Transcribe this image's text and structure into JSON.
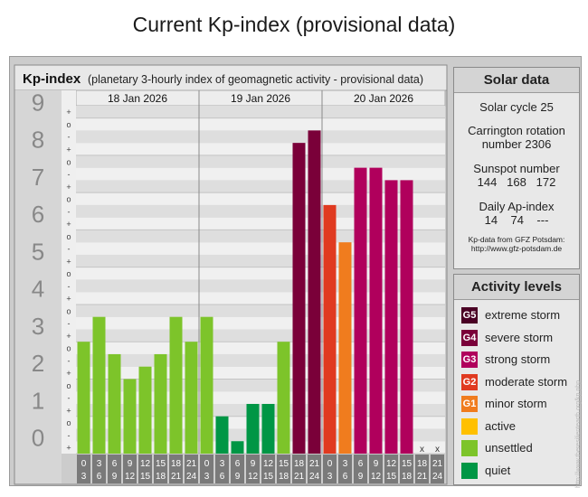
{
  "page_title": "Current Kp-index (provisional data)",
  "chart_header": {
    "title": "Kp-index",
    "subtitle": "(planetary 3-hourly index of geomagnetic activity - provisional data)"
  },
  "chart_data": {
    "type": "bar",
    "title": "Kp-index",
    "ylim": [
      0,
      9.33
    ],
    "y_ticks": [
      "0",
      "1",
      "2",
      "3",
      "4",
      "5",
      "6",
      "7",
      "8",
      "9"
    ],
    "minor_marks": [
      "+",
      "-",
      "o"
    ],
    "days": [
      "18 Jan 2026",
      "19 Jan 2026",
      "20 Jan 2026"
    ],
    "interval_labels": [
      [
        "0",
        "3"
      ],
      [
        "3",
        "6"
      ],
      [
        "6",
        "9"
      ],
      [
        "9",
        "12"
      ],
      [
        "12",
        "15"
      ],
      [
        "15",
        "18"
      ],
      [
        "18",
        "21"
      ],
      [
        "21",
        "24"
      ]
    ],
    "values": [
      3,
      3.667,
      2.667,
      2,
      2.333,
      2.667,
      3.667,
      3,
      3.667,
      1,
      0.333,
      1.333,
      1.333,
      3,
      8.333,
      8.667,
      6.667,
      5.667,
      7.667,
      7.667,
      7.333,
      7.333,
      null,
      null
    ],
    "missing_mark": "x",
    "colors": {
      "quiet": "#009645",
      "unsettled": "#7dc42a",
      "active": "#ffc000",
      "G1": "#f07c1e",
      "G2": "#e03a20",
      "G3": "#b0005c",
      "G4": "#7a0039",
      "G5": "#4a0024"
    }
  },
  "solar_data": {
    "title": "Solar data",
    "cycle": "Solar cycle 25",
    "carrington_label": "Carrington rotation",
    "carrington_number": "number 2306",
    "sunspot_label": "Sunspot number",
    "sunspot_values": "144   168   172",
    "ap_label": "Daily Ap-index",
    "ap_values": "14    74    ---",
    "source_line1": "Kp-data from GFZ Potsdam:",
    "source_line2": "http://www.gfz-potsdam.de"
  },
  "activity_levels": {
    "title": "Activity levels",
    "items": [
      {
        "code": "G5",
        "label": "extreme storm",
        "color": "#4a0024"
      },
      {
        "code": "G4",
        "label": "severe storm",
        "color": "#7a0039"
      },
      {
        "code": "G3",
        "label": "strong storm",
        "color": "#b0005c"
      },
      {
        "code": "G2",
        "label": "moderate storm",
        "color": "#e03a20"
      },
      {
        "code": "G1",
        "label": "minor storm",
        "color": "#f07c1e"
      },
      {
        "code": "",
        "label": "active",
        "color": "#ffc000"
      },
      {
        "code": "",
        "label": "unsettled",
        "color": "#7dc42a"
      },
      {
        "code": "",
        "label": "quiet",
        "color": "#009645"
      }
    ]
  },
  "watermark": "http://www.theresilientearth.org/kp.php"
}
